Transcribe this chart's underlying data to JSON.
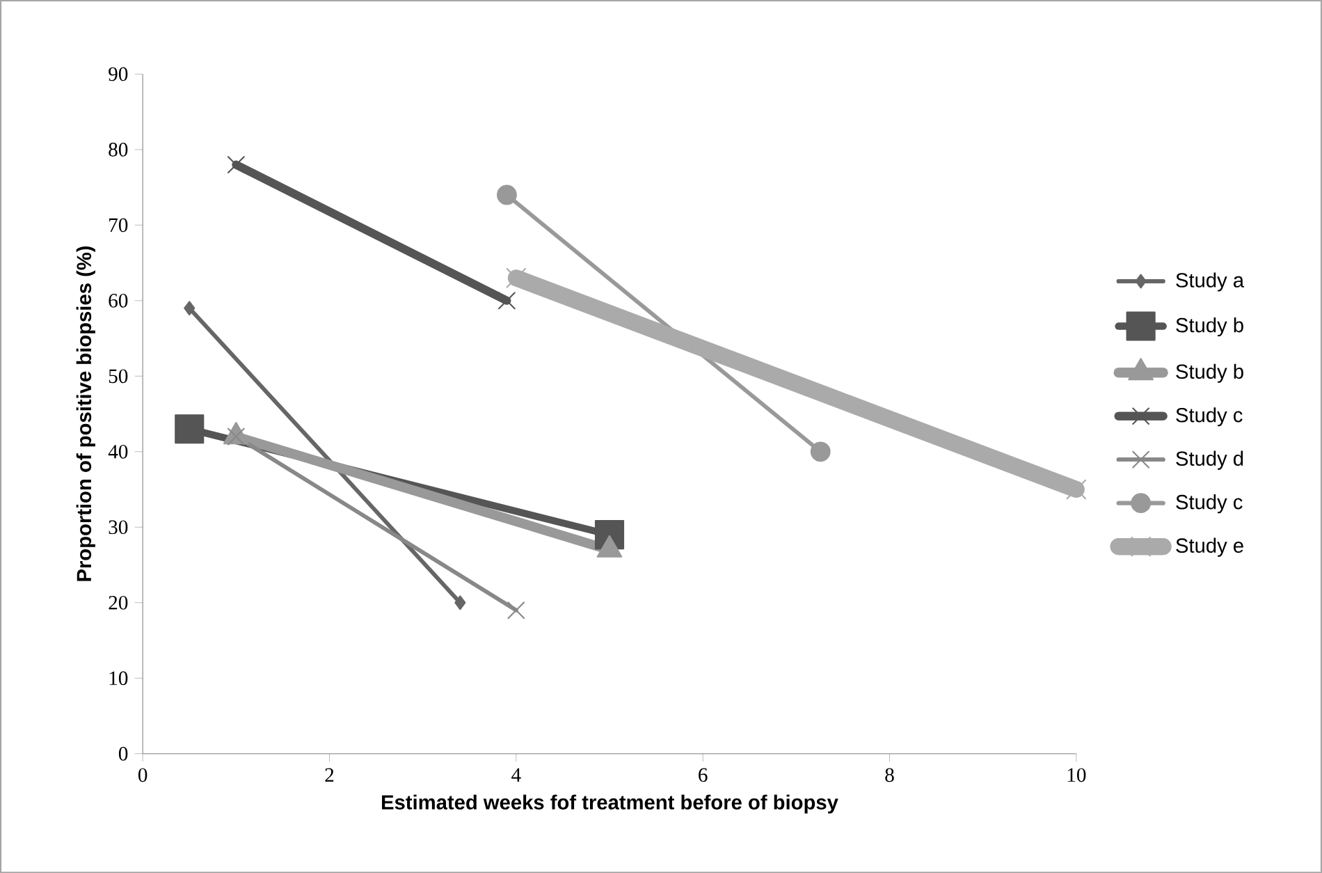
{
  "chart_data": {
    "type": "line",
    "xlabel": "Estimated weeks fof treatment before of biopsy",
    "ylabel": "Proportion of positive biopsies (%)",
    "xlim": [
      0,
      10
    ],
    "xticks": [
      0,
      2,
      4,
      6,
      8,
      10
    ],
    "ylim": [
      0,
      90
    ],
    "yticks": [
      0,
      10,
      20,
      30,
      40,
      50,
      60,
      70,
      80,
      90
    ],
    "grid": false,
    "legend": "right",
    "series": [
      {
        "name": "Study a",
        "color": "#666666",
        "marker": "diamond",
        "x": [
          0.5,
          3.4
        ],
        "values": [
          59,
          20
        ]
      },
      {
        "name": "Study b",
        "color": "#555555",
        "marker": "square",
        "x": [
          0.5,
          5.0
        ],
        "values": [
          43,
          29
        ]
      },
      {
        "name": "Study b",
        "color": "#999999",
        "marker": "triangle",
        "x": [
          1.0,
          5.0
        ],
        "values": [
          42,
          27
        ]
      },
      {
        "name": "Study c",
        "color": "#555555",
        "marker": "cross",
        "x": [
          1.0,
          3.9
        ],
        "values": [
          78,
          60
        ]
      },
      {
        "name": "Study d",
        "color": "#888888",
        "marker": "cross",
        "x": [
          1.0,
          4.0
        ],
        "values": [
          42,
          19
        ]
      },
      {
        "name": "Study c",
        "color": "#999999",
        "marker": "circle",
        "x": [
          3.9,
          7.26
        ],
        "values": [
          74,
          40
        ]
      },
      {
        "name": "Study e",
        "color": "#aaaaaa",
        "marker": "cross",
        "x": [
          4.0,
          10
        ],
        "values": [
          63,
          35
        ]
      }
    ]
  }
}
